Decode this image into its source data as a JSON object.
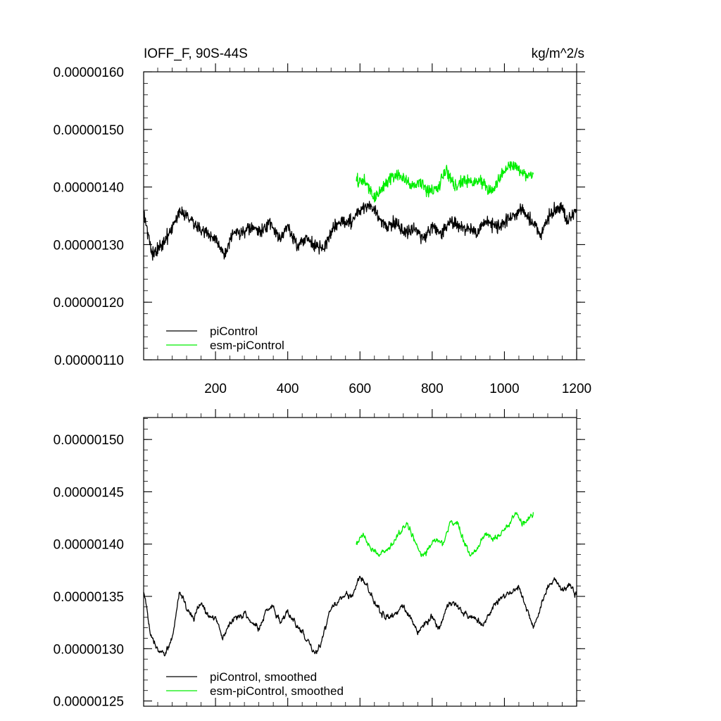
{
  "chart_data": [
    {
      "type": "line",
      "title_left": "IOFF_F, 90S-44S",
      "title_right": "kg/m^2/s",
      "xlim": [
        1,
        1200
      ],
      "ylim": [
        1.1e-06,
        1.6e-06
      ],
      "x_ticks": [
        200,
        400,
        600,
        800,
        1000,
        1200
      ],
      "x_tick_labels": [
        "200",
        "400",
        "600",
        "800",
        "1000",
        "1200"
      ],
      "y_ticks": [
        1.1e-06,
        1.2e-06,
        1.3e-06,
        1.4e-06,
        1.5e-06,
        1.6e-06
      ],
      "y_tick_labels": [
        "0.00000110",
        "0.00000120",
        "0.00000130",
        "0.00000140",
        "0.00000150",
        "0.00000160"
      ],
      "legend_position": "bottom-left",
      "series": [
        {
          "name": "piControl",
          "color": "#000000",
          "x": [
            1,
            25,
            50,
            75,
            100,
            125,
            150,
            175,
            200,
            225,
            250,
            275,
            300,
            325,
            350,
            375,
            400,
            425,
            450,
            475,
            500,
            525,
            550,
            575,
            600,
            625,
            650,
            675,
            700,
            725,
            750,
            775,
            800,
            825,
            850,
            875,
            900,
            925,
            950,
            975,
            1000,
            1025,
            1050,
            1075,
            1100,
            1125,
            1150,
            1175,
            1200
          ],
          "y": [
            1.36e-06,
            1.28e-06,
            1.3e-06,
            1.32e-06,
            1.36e-06,
            1.35e-06,
            1.33e-06,
            1.32e-06,
            1.31e-06,
            1.28e-06,
            1.32e-06,
            1.32e-06,
            1.33e-06,
            1.32e-06,
            1.34e-06,
            1.31e-06,
            1.33e-06,
            1.3e-06,
            1.31e-06,
            1.3e-06,
            1.29e-06,
            1.33e-06,
            1.34e-06,
            1.34e-06,
            1.36e-06,
            1.37e-06,
            1.35e-06,
            1.33e-06,
            1.34e-06,
            1.32e-06,
            1.33e-06,
            1.31e-06,
            1.33e-06,
            1.32e-06,
            1.34e-06,
            1.33e-06,
            1.33e-06,
            1.32e-06,
            1.34e-06,
            1.33e-06,
            1.34e-06,
            1.35e-06,
            1.36e-06,
            1.34e-06,
            1.32e-06,
            1.35e-06,
            1.37e-06,
            1.34e-06,
            1.36e-06
          ],
          "noise": 5.5e-09
        },
        {
          "name": "esm-piControl",
          "color": "#00ee00",
          "x": [
            590,
            615,
            640,
            665,
            690,
            715,
            740,
            765,
            790,
            815,
            840,
            865,
            890,
            915,
            940,
            965,
            990,
            1015,
            1040,
            1065,
            1080
          ],
          "y": [
            1.41e-06,
            1.41e-06,
            1.38e-06,
            1.4e-06,
            1.42e-06,
            1.42e-06,
            1.4e-06,
            1.41e-06,
            1.39e-06,
            1.4e-06,
            1.43e-06,
            1.4e-06,
            1.41e-06,
            1.41e-06,
            1.41e-06,
            1.39e-06,
            1.42e-06,
            1.44e-06,
            1.43e-06,
            1.42e-06,
            1.42e-06
          ],
          "noise": 5.5e-09
        }
      ]
    },
    {
      "type": "line",
      "xlim": [
        1,
        1200
      ],
      "ylim": [
        1.245e-06,
        1.521e-06
      ],
      "x_ticks": [
        200,
        400,
        600,
        800,
        1000,
        1200
      ],
      "y_ticks": [
        1.25e-06,
        1.3e-06,
        1.35e-06,
        1.4e-06,
        1.45e-06,
        1.5e-06
      ],
      "y_tick_labels": [
        "0.00000125",
        "0.00000130",
        "0.00000135",
        "0.00000140",
        "0.00000145",
        "0.00000150"
      ],
      "legend_position": "bottom-left",
      "series": [
        {
          "name": "piControl, smoothed",
          "color": "#000000",
          "x": [
            1,
            20,
            40,
            60,
            80,
            100,
            120,
            140,
            160,
            180,
            200,
            220,
            240,
            260,
            280,
            300,
            320,
            340,
            360,
            380,
            400,
            420,
            440,
            460,
            480,
            500,
            520,
            540,
            560,
            580,
            600,
            620,
            640,
            660,
            680,
            700,
            720,
            740,
            760,
            780,
            800,
            820,
            840,
            860,
            880,
            900,
            920,
            940,
            960,
            980,
            1000,
            1020,
            1040,
            1060,
            1080,
            1100,
            1120,
            1140,
            1160,
            1180,
            1200
          ],
          "y": [
            1.355e-06,
            1.315e-06,
            1.3e-06,
            1.295e-06,
            1.31e-06,
            1.355e-06,
            1.34e-06,
            1.33e-06,
            1.345e-06,
            1.33e-06,
            1.33e-06,
            1.31e-06,
            1.325e-06,
            1.33e-06,
            1.335e-06,
            1.325e-06,
            1.32e-06,
            1.335e-06,
            1.34e-06,
            1.325e-06,
            1.335e-06,
            1.325e-06,
            1.315e-06,
            1.305e-06,
            1.295e-06,
            1.315e-06,
            1.34e-06,
            1.345e-06,
            1.35e-06,
            1.35e-06,
            1.37e-06,
            1.36e-06,
            1.345e-06,
            1.335e-06,
            1.33e-06,
            1.335e-06,
            1.34e-06,
            1.33e-06,
            1.315e-06,
            1.325e-06,
            1.33e-06,
            1.32e-06,
            1.34e-06,
            1.345e-06,
            1.335e-06,
            1.33e-06,
            1.33e-06,
            1.32e-06,
            1.335e-06,
            1.345e-06,
            1.35e-06,
            1.355e-06,
            1.36e-06,
            1.34e-06,
            1.32e-06,
            1.34e-06,
            1.36e-06,
            1.365e-06,
            1.355e-06,
            1.36e-06,
            1.35e-06
          ],
          "noise": 3e-09
        },
        {
          "name": "esm-piControl, smoothed",
          "color": "#00ee00",
          "x": [
            590,
            610,
            630,
            650,
            670,
            690,
            710,
            730,
            750,
            770,
            790,
            810,
            830,
            850,
            870,
            890,
            910,
            930,
            950,
            970,
            990,
            1010,
            1030,
            1050,
            1070,
            1080
          ],
          "y": [
            1.4e-06,
            1.41e-06,
            1.395e-06,
            1.39e-06,
            1.395e-06,
            1.4e-06,
            1.41e-06,
            1.42e-06,
            1.405e-06,
            1.39e-06,
            1.395e-06,
            1.405e-06,
            1.4e-06,
            1.42e-06,
            1.42e-06,
            1.4e-06,
            1.39e-06,
            1.4e-06,
            1.41e-06,
            1.405e-06,
            1.41e-06,
            1.42e-06,
            1.43e-06,
            1.42e-06,
            1.425e-06,
            1.43e-06
          ],
          "noise": 3e-09
        }
      ]
    }
  ]
}
